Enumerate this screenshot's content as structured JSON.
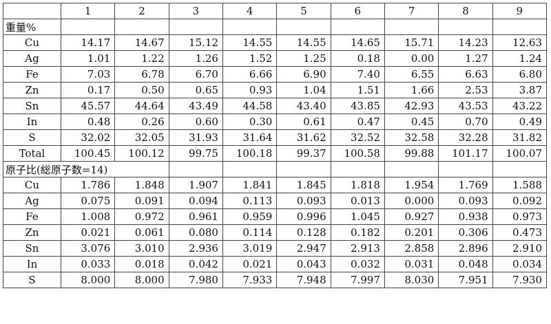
{
  "table": {
    "header": [
      "1",
      "2",
      "3",
      "4",
      "5",
      "6",
      "7",
      "8",
      "9"
    ],
    "sections": [
      {
        "title": "重量%",
        "rows": [
          {
            "label": "Cu",
            "values": [
              "14.17",
              "14.67",
              "15.12",
              "14.55",
              "14.55",
              "14.65",
              "15.71",
              "14.23",
              "12.63"
            ]
          },
          {
            "label": "Ag",
            "values": [
              "1.01",
              "1.22",
              "1.26",
              "1.52",
              "1.25",
              "0.18",
              "0.00",
              "1.27",
              "1.24"
            ]
          },
          {
            "label": "Fe",
            "values": [
              "7.03",
              "6.78",
              "6.70",
              "6.66",
              "6.90",
              "7.40",
              "6.55",
              "6.63",
              "6.80"
            ]
          },
          {
            "label": "Zn",
            "values": [
              "0.17",
              "0.50",
              "0.65",
              "0.93",
              "1.04",
              "1.51",
              "1.66",
              "2.53",
              "3.87"
            ]
          },
          {
            "label": "Sn",
            "values": [
              "45.57",
              "44.64",
              "43.49",
              "44.58",
              "43.40",
              "43.85",
              "42.93",
              "43.53",
              "43.22"
            ]
          },
          {
            "label": "In",
            "values": [
              "0.48",
              "0.26",
              "0.60",
              "0.30",
              "0.61",
              "0.47",
              "0.45",
              "0.70",
              "0.49"
            ]
          },
          {
            "label": "S",
            "values": [
              "32.02",
              "32.05",
              "31.93",
              "31.64",
              "31.62",
              "32.52",
              "32.58",
              "32.28",
              "31.82"
            ]
          },
          {
            "label": "Total",
            "values": [
              "100.45",
              "100.12",
              "99.75",
              "100.18",
              "99.37",
              "100.58",
              "99.88",
              "101.17",
              "100.07"
            ]
          }
        ]
      },
      {
        "title": "原子比(総原子数=14)",
        "rows": [
          {
            "label": "Cu",
            "values": [
              "1.786",
              "1.848",
              "1.907",
              "1.841",
              "1.845",
              "1.818",
              "1.954",
              "1.769",
              "1.588"
            ]
          },
          {
            "label": "Ag",
            "values": [
              "0.075",
              "0.091",
              "0.094",
              "0.113",
              "0.093",
              "0.013",
              "0.000",
              "0.093",
              "0.092"
            ]
          },
          {
            "label": "Fe",
            "values": [
              "1.008",
              "0.972",
              "0.961",
              "0.959",
              "0.996",
              "1.045",
              "0.927",
              "0.938",
              "0.973"
            ]
          },
          {
            "label": "Zn",
            "values": [
              "0.021",
              "0.061",
              "0.080",
              "0.114",
              "0.128",
              "0.182",
              "0.201",
              "0.306",
              "0.473"
            ]
          },
          {
            "label": "Sn",
            "values": [
              "3.076",
              "3.010",
              "2.936",
              "3.019",
              "2.947",
              "2.913",
              "2.858",
              "2.896",
              "2.910"
            ]
          },
          {
            "label": "In",
            "values": [
              "0.033",
              "0.018",
              "0.042",
              "0.021",
              "0.043",
              "0.032",
              "0.031",
              "0.048",
              "0.034"
            ]
          },
          {
            "label": "S",
            "values": [
              "8.000",
              "8.000",
              "7.980",
              "7.933",
              "7.948",
              "7.997",
              "8.030",
              "7.951",
              "7.930"
            ]
          }
        ]
      }
    ]
  }
}
